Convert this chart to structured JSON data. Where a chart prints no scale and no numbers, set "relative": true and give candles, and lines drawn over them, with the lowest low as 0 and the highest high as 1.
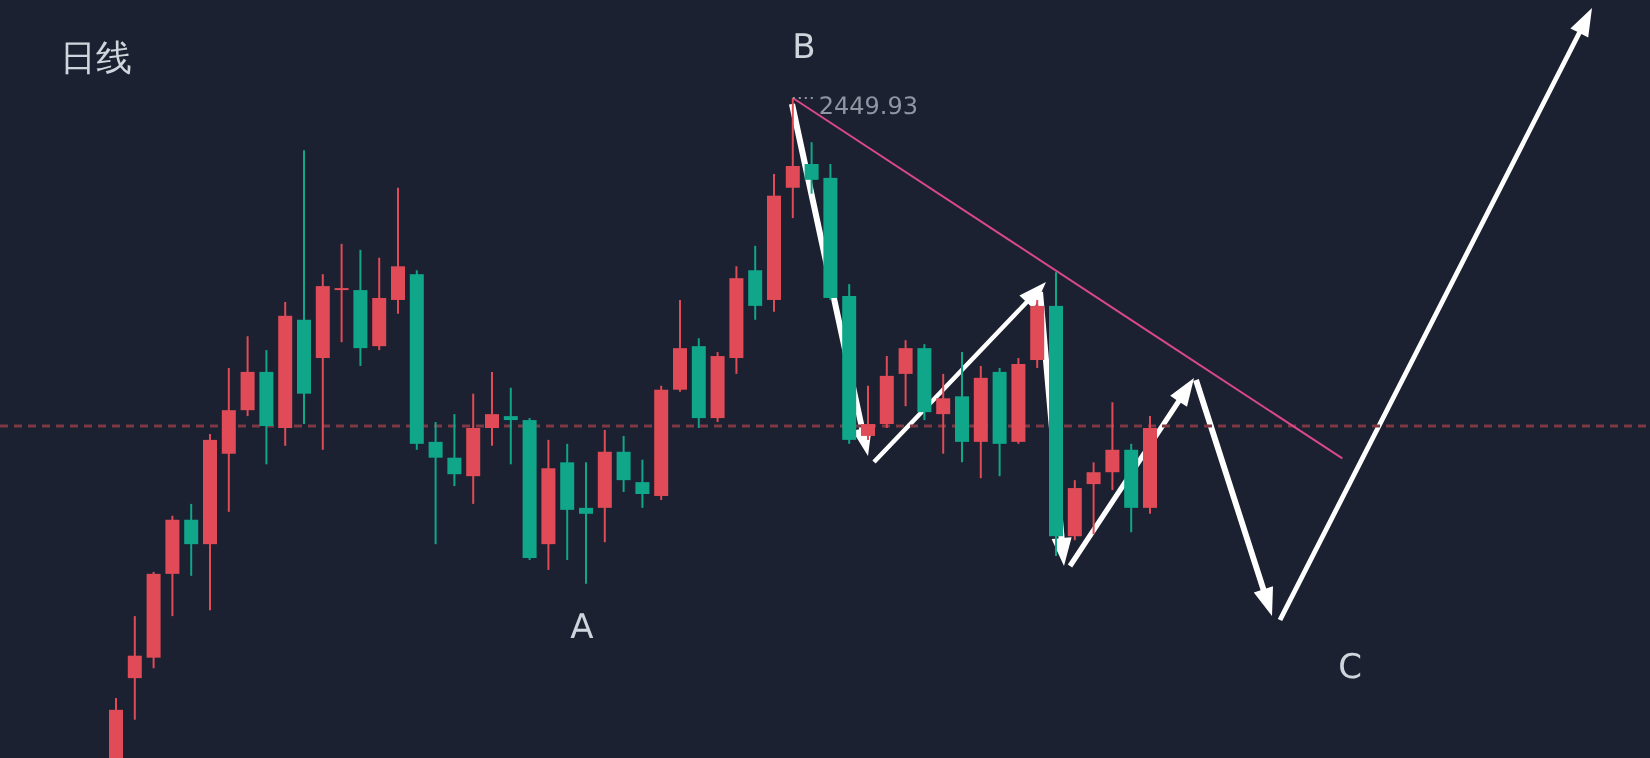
{
  "chart_data": {
    "type": "candlestick",
    "relative": true,
    "categories": [
      null,
      null,
      null,
      null,
      null,
      null,
      null,
      null,
      null,
      null,
      null,
      null,
      null,
      null,
      null,
      null,
      null,
      null,
      null,
      null,
      null,
      null,
      null,
      null,
      null,
      null,
      null,
      null,
      null,
      null,
      null,
      null,
      null,
      null,
      null,
      null,
      null,
      null,
      null,
      null,
      null,
      null,
      null,
      null,
      null,
      null,
      null,
      null,
      null,
      null,
      null,
      null,
      null,
      null,
      null,
      null
    ],
    "ohlc": [
      [
        0,
        0.091,
        0,
        0.073
      ],
      [
        0.121,
        0.215,
        0.058,
        0.155
      ],
      [
        0.152,
        0.282,
        0.136,
        0.279
      ],
      [
        0.279,
        0.367,
        0.215,
        0.361
      ],
      [
        0.361,
        0.385,
        0.276,
        0.324
      ],
      [
        0.324,
        0.491,
        0.224,
        0.482
      ],
      [
        0.461,
        0.591,
        0.373,
        0.527
      ],
      [
        0.527,
        0.639,
        0.518,
        0.585
      ],
      [
        0.585,
        0.618,
        0.445,
        0.503
      ],
      [
        0.5,
        0.691,
        0.473,
        0.67
      ],
      [
        0.664,
        0.921,
        0.506,
        0.552
      ],
      [
        0.606,
        0.733,
        0.467,
        0.715
      ],
      [
        0.709,
        0.779,
        0.63,
        0.712
      ],
      [
        0.709,
        0.77,
        0.594,
        0.621
      ],
      [
        0.624,
        0.758,
        0.618,
        0.697
      ],
      [
        0.694,
        0.864,
        0.673,
        0.745
      ],
      [
        0.733,
        0.739,
        0.467,
        0.476
      ],
      [
        0.479,
        0.509,
        0.324,
        0.455
      ],
      [
        0.455,
        0.521,
        0.412,
        0.43
      ],
      [
        0.427,
        0.552,
        0.385,
        0.5
      ],
      [
        0.5,
        0.585,
        0.473,
        0.521
      ],
      [
        0.518,
        0.561,
        0.445,
        0.512
      ],
      [
        0.512,
        0.515,
        0.3,
        0.303
      ],
      [
        0.324,
        0.482,
        0.285,
        0.439
      ],
      [
        0.448,
        0.476,
        0.3,
        0.376
      ],
      [
        0.379,
        0.448,
        0.264,
        0.37
      ],
      [
        0.379,
        0.497,
        0.327,
        0.464
      ],
      [
        0.464,
        0.488,
        0.403,
        0.421
      ],
      [
        0.418,
        0.452,
        0.379,
        0.4
      ],
      [
        0.397,
        0.564,
        0.391,
        0.558
      ],
      [
        0.558,
        0.694,
        0.555,
        0.621
      ],
      [
        0.624,
        0.636,
        0.5,
        0.515
      ],
      [
        0.515,
        0.615,
        0.509,
        0.609
      ],
      [
        0.606,
        0.745,
        0.582,
        0.727
      ],
      [
        0.739,
        0.776,
        0.664,
        0.685
      ],
      [
        0.694,
        0.885,
        0.676,
        0.852
      ],
      [
        0.864,
        1,
        0.818,
        0.897
      ],
      [
        0.9,
        0.933,
        0.855,
        0.876
      ],
      [
        0.879,
        0.9,
        0.694,
        0.697
      ],
      [
        0.7,
        0.718,
        0.476,
        0.482
      ],
      [
        0.488,
        0.564,
        0.482,
        0.506
      ],
      [
        0.506,
        0.609,
        0.5,
        0.579
      ],
      [
        0.582,
        0.633,
        0.533,
        0.621
      ],
      [
        0.621,
        0.627,
        0.512,
        0.524
      ],
      [
        0.521,
        0.582,
        0.461,
        0.545
      ],
      [
        0.548,
        0.615,
        0.448,
        0.479
      ],
      [
        0.479,
        0.594,
        0.424,
        0.576
      ],
      [
        0.585,
        0.591,
        0.427,
        0.476
      ],
      [
        0.479,
        0.606,
        0.476,
        0.597
      ],
      [
        0.603,
        0.694,
        0.591,
        0.685
      ],
      [
        0.685,
        0.736,
        0.306,
        0.336
      ],
      [
        0.336,
        0.421,
        0.33,
        0.409
      ],
      [
        0.415,
        0.448,
        0.339,
        0.433
      ],
      [
        0.433,
        0.539,
        0.406,
        0.467
      ],
      [
        0.467,
        0.476,
        0.342,
        0.379
      ],
      [
        0.379,
        0.518,
        0.37,
        0.5
      ]
    ],
    "colors": [
      "#e04b57",
      "#e04b57",
      "#e04b57",
      "#e04b57",
      "#0fa68a",
      "#e04b57",
      "#e04b57",
      "#e04b57",
      "#0fa68a",
      "#e04b57",
      "#0fa68a",
      "#e04b57",
      "#e04b57",
      "#0fa68a",
      "#e04b57",
      "#e04b57",
      "#0fa68a",
      "#0fa68a",
      "#0fa68a",
      "#e04b57",
      "#e04b57",
      "#0fa68a",
      "#0fa68a",
      "#e04b57",
      "#0fa68a",
      "#0fa68a",
      "#e04b57",
      "#0fa68a",
      "#0fa68a",
      "#e04b57",
      "#e04b57",
      "#0fa68a",
      "#e04b57",
      "#e04b57",
      "#0fa68a",
      "#e04b57",
      "#e04b57",
      "#0fa68a",
      "#0fa68a",
      "#0fa68a",
      "#e04b57",
      "#e04b57",
      "#e04b57",
      "#0fa68a",
      "#e04b57",
      "#0fa68a",
      "#e04b57",
      "#0fa68a",
      "#e04b57",
      "#e04b57",
      "#0fa68a",
      "#e04b57",
      "#e04b57",
      "#e04b57",
      "#0fa68a",
      "#e04b57"
    ],
    "series": [
      {
        "type": "line",
        "values": [
          null,
          null,
          null,
          null,
          null,
          null,
          null,
          null,
          null,
          null,
          null,
          null,
          null,
          null,
          null,
          null,
          null,
          null,
          null,
          null,
          null,
          null,
          null,
          null,
          null,
          null,
          null,
          null,
          null,
          null,
          null,
          null,
          null,
          null,
          null,
          null,
          1,
          null,
          null,
          null,
          null,
          null,
          null,
          null,
          null,
          null,
          null,
          null,
          null,
          null,
          null,
          null,
          null,
          null,
          null,
          0.645
        ],
        "color": "#d9488a"
      }
    ],
    "ref_lines": [
      {
        "axis": "y",
        "value": 0.503,
        "color": "#7d3844",
        "line_style": "dashed"
      }
    ],
    "annotations": [
      "日线",
      "B",
      "A",
      "C",
      "2449.93"
    ]
  }
}
